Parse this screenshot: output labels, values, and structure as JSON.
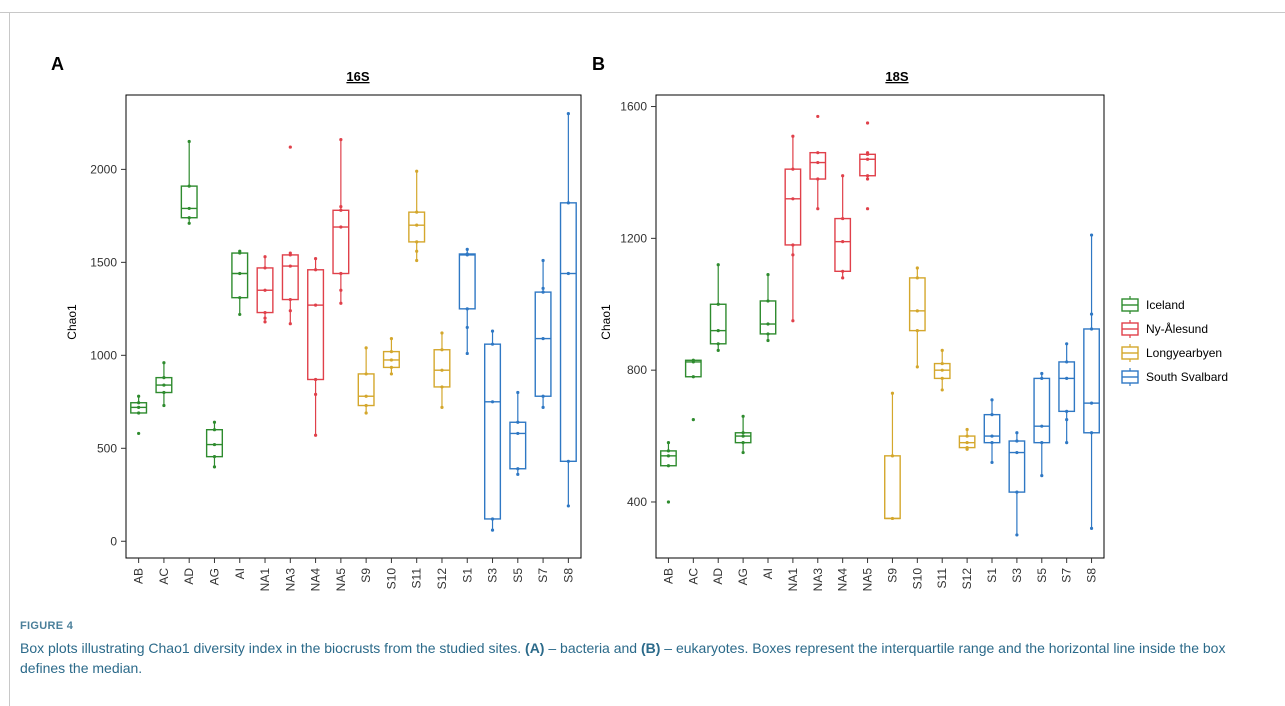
{
  "caption": {
    "label": "FIGURE 4",
    "part1": "Box plots illustrating Chao1 diversity index in the biocrusts from the studied sites. ",
    "bold_a": "(A)",
    "part2": " – bacteria and ",
    "bold_b": "(B)",
    "part3": " – eukaryotes. Boxes represent the interquartile range and the horizontal line inside the box defines the median."
  },
  "legend": {
    "entries": [
      {
        "name": "Iceland",
        "color": "#2e8b2e"
      },
      {
        "name": "Ny-Ålesund",
        "color": "#e0404a"
      },
      {
        "name": "Longyearbyen",
        "color": "#d4a72c"
      },
      {
        "name": "South Svalbard",
        "color": "#2f78c4"
      }
    ]
  },
  "chart_data": [
    {
      "type": "box",
      "panel": "A",
      "title": "16S",
      "ylabel": "Chao1",
      "xlabel": "",
      "ylim": [
        -90,
        2400
      ],
      "yticks": [
        0,
        500,
        1000,
        1500,
        2000
      ],
      "categories": [
        "AB",
        "AC",
        "AD",
        "AG",
        "AI",
        "NA1",
        "NA3",
        "NA4",
        "NA5",
        "S9",
        "S10",
        "S11",
        "S12",
        "S1",
        "S3",
        "S5",
        "S7",
        "S8"
      ],
      "groups": [
        "Iceland",
        "Iceland",
        "Iceland",
        "Iceland",
        "Iceland",
        "Ny-Ålesund",
        "Ny-Ålesund",
        "Ny-Ålesund",
        "Ny-Ålesund",
        "Longyearbyen",
        "Longyearbyen",
        "Longyearbyen",
        "Longyearbyen",
        "South Svalbard",
        "South Svalbard",
        "South Svalbard",
        "South Svalbard",
        "South Svalbard"
      ],
      "boxes": [
        {
          "min": 690,
          "q1": 690,
          "median": 720,
          "q3": 745,
          "max": 780,
          "points": [
            580,
            690,
            720,
            745,
            780
          ]
        },
        {
          "min": 730,
          "q1": 800,
          "median": 840,
          "q3": 880,
          "max": 960,
          "points": [
            730,
            800,
            840,
            880,
            960
          ]
        },
        {
          "min": 1710,
          "q1": 1740,
          "median": 1790,
          "q3": 1910,
          "max": 2150,
          "points": [
            1710,
            1740,
            1790,
            1910,
            2150
          ]
        },
        {
          "min": 400,
          "q1": 455,
          "median": 520,
          "q3": 600,
          "max": 640,
          "points": [
            400,
            455,
            520,
            600,
            640
          ]
        },
        {
          "min": 1220,
          "q1": 1310,
          "median": 1440,
          "q3": 1550,
          "max": 1560,
          "points": [
            1220,
            1310,
            1440,
            1550,
            1560
          ]
        },
        {
          "min": 1180,
          "q1": 1230,
          "median": 1350,
          "q3": 1470,
          "max": 1530,
          "points": [
            1180,
            1200,
            1230,
            1350,
            1470,
            1530
          ]
        },
        {
          "min": 1170,
          "q1": 1300,
          "median": 1480,
          "q3": 1540,
          "max": 1550,
          "points": [
            1170,
            1240,
            1300,
            1480,
            1540,
            1550,
            2120
          ]
        },
        {
          "min": 570,
          "q1": 870,
          "median": 1270,
          "q3": 1460,
          "max": 1520,
          "points": [
            570,
            790,
            870,
            1270,
            1460,
            1520
          ]
        },
        {
          "min": 1280,
          "q1": 1440,
          "median": 1690,
          "q3": 1780,
          "max": 2160,
          "points": [
            1280,
            1350,
            1440,
            1690,
            1780,
            1800,
            2160
          ]
        },
        {
          "min": 690,
          "q1": 730,
          "median": 780,
          "q3": 900,
          "max": 1040,
          "points": [
            690,
            730,
            780,
            900,
            1040
          ]
        },
        {
          "min": 900,
          "q1": 935,
          "median": 975,
          "q3": 1020,
          "max": 1090,
          "points": [
            900,
            935,
            975,
            1020,
            1090
          ]
        },
        {
          "min": 1510,
          "q1": 1610,
          "median": 1700,
          "q3": 1770,
          "max": 1990,
          "points": [
            1510,
            1560,
            1610,
            1700,
            1770,
            1990
          ]
        },
        {
          "min": 720,
          "q1": 830,
          "median": 920,
          "q3": 1030,
          "max": 1120,
          "points": [
            720,
            830,
            920,
            1030,
            1120
          ]
        },
        {
          "min": 1010,
          "q1": 1250,
          "median": 1540,
          "q3": 1545,
          "max": 1570,
          "points": [
            1010,
            1150,
            1250,
            1540,
            1545,
            1570
          ]
        },
        {
          "min": 60,
          "q1": 120,
          "median": 750,
          "q3": 1060,
          "max": 1130,
          "points": [
            60,
            120,
            750,
            1060,
            1130
          ]
        },
        {
          "min": 360,
          "q1": 390,
          "median": 580,
          "q3": 640,
          "max": 800,
          "points": [
            360,
            390,
            580,
            640,
            800
          ]
        },
        {
          "min": 720,
          "q1": 780,
          "median": 1090,
          "q3": 1340,
          "max": 1510,
          "points": [
            720,
            780,
            1090,
            1340,
            1360,
            1510
          ]
        },
        {
          "min": 190,
          "q1": 430,
          "median": 1440,
          "q3": 1820,
          "max": 2300,
          "points": [
            190,
            430,
            1440,
            1820,
            2300
          ]
        }
      ]
    },
    {
      "type": "box",
      "panel": "B",
      "title": "18S",
      "ylabel": "Chao1",
      "xlabel": "",
      "ylim": [
        230,
        1635
      ],
      "yticks": [
        400,
        800,
        1200,
        1600
      ],
      "categories": [
        "AB",
        "AC",
        "AD",
        "AG",
        "AI",
        "NA1",
        "NA3",
        "NA4",
        "NA5",
        "S9",
        "S10",
        "S11",
        "S12",
        "S1",
        "S3",
        "S5",
        "S7",
        "S8"
      ],
      "groups": [
        "Iceland",
        "Iceland",
        "Iceland",
        "Iceland",
        "Iceland",
        "Ny-Ålesund",
        "Ny-Ålesund",
        "Ny-Ålesund",
        "Ny-Ålesund",
        "Longyearbyen",
        "Longyearbyen",
        "Longyearbyen",
        "Longyearbyen",
        "South Svalbard",
        "South Svalbard",
        "South Svalbard",
        "South Svalbard",
        "South Svalbard"
      ],
      "boxes": [
        {
          "min": 510,
          "q1": 510,
          "median": 540,
          "q3": 555,
          "max": 580,
          "points": [
            400,
            510,
            540,
            555,
            580
          ]
        },
        {
          "min": 780,
          "q1": 780,
          "median": 825,
          "q3": 830,
          "max": 830,
          "points": [
            650,
            780,
            825,
            830
          ]
        },
        {
          "min": 860,
          "q1": 880,
          "median": 920,
          "q3": 1000,
          "max": 1120,
          "points": [
            860,
            880,
            920,
            1000,
            1120
          ]
        },
        {
          "min": 550,
          "q1": 580,
          "median": 600,
          "q3": 610,
          "max": 660,
          "points": [
            550,
            580,
            600,
            610,
            660
          ]
        },
        {
          "min": 890,
          "q1": 910,
          "median": 940,
          "q3": 1010,
          "max": 1090,
          "points": [
            890,
            910,
            940,
            1010,
            1090
          ]
        },
        {
          "min": 950,
          "q1": 1180,
          "median": 1320,
          "q3": 1410,
          "max": 1510,
          "points": [
            950,
            1150,
            1180,
            1320,
            1410,
            1510
          ]
        },
        {
          "min": 1290,
          "q1": 1380,
          "median": 1430,
          "q3": 1460,
          "max": 1460,
          "points": [
            1290,
            1380,
            1430,
            1460,
            1570
          ]
        },
        {
          "min": 1080,
          "q1": 1100,
          "median": 1190,
          "q3": 1260,
          "max": 1390,
          "points": [
            1080,
            1100,
            1190,
            1260,
            1390
          ]
        },
        {
          "min": 1380,
          "q1": 1390,
          "median": 1440,
          "q3": 1455,
          "max": 1460,
          "points": [
            1290,
            1380,
            1390,
            1440,
            1455,
            1460,
            1550
          ]
        },
        {
          "min": 350,
          "q1": 350,
          "median": 350,
          "q3": 540,
          "max": 730,
          "points": [
            350,
            540,
            730
          ]
        },
        {
          "min": 810,
          "q1": 920,
          "median": 980,
          "q3": 1080,
          "max": 1110,
          "points": [
            810,
            920,
            980,
            1080,
            1110
          ]
        },
        {
          "min": 740,
          "q1": 775,
          "median": 800,
          "q3": 820,
          "max": 860,
          "points": [
            740,
            775,
            800,
            820,
            860
          ]
        },
        {
          "min": 560,
          "q1": 565,
          "median": 580,
          "q3": 600,
          "max": 620,
          "points": [
            560,
            565,
            580,
            600,
            620
          ]
        },
        {
          "min": 520,
          "q1": 580,
          "median": 600,
          "q3": 665,
          "max": 710,
          "points": [
            520,
            580,
            600,
            665,
            710
          ]
        },
        {
          "min": 300,
          "q1": 430,
          "median": 550,
          "q3": 585,
          "max": 610,
          "points": [
            300,
            430,
            550,
            585,
            610
          ]
        },
        {
          "min": 480,
          "q1": 580,
          "median": 630,
          "q3": 775,
          "max": 790,
          "points": [
            480,
            580,
            630,
            775,
            790
          ]
        },
        {
          "min": 580,
          "q1": 675,
          "median": 775,
          "q3": 825,
          "max": 880,
          "points": [
            580,
            650,
            675,
            775,
            825,
            880
          ]
        },
        {
          "min": 320,
          "q1": 610,
          "median": 700,
          "q3": 925,
          "max": 1210,
          "points": [
            320,
            610,
            700,
            925,
            970,
            1210
          ]
        }
      ]
    }
  ]
}
